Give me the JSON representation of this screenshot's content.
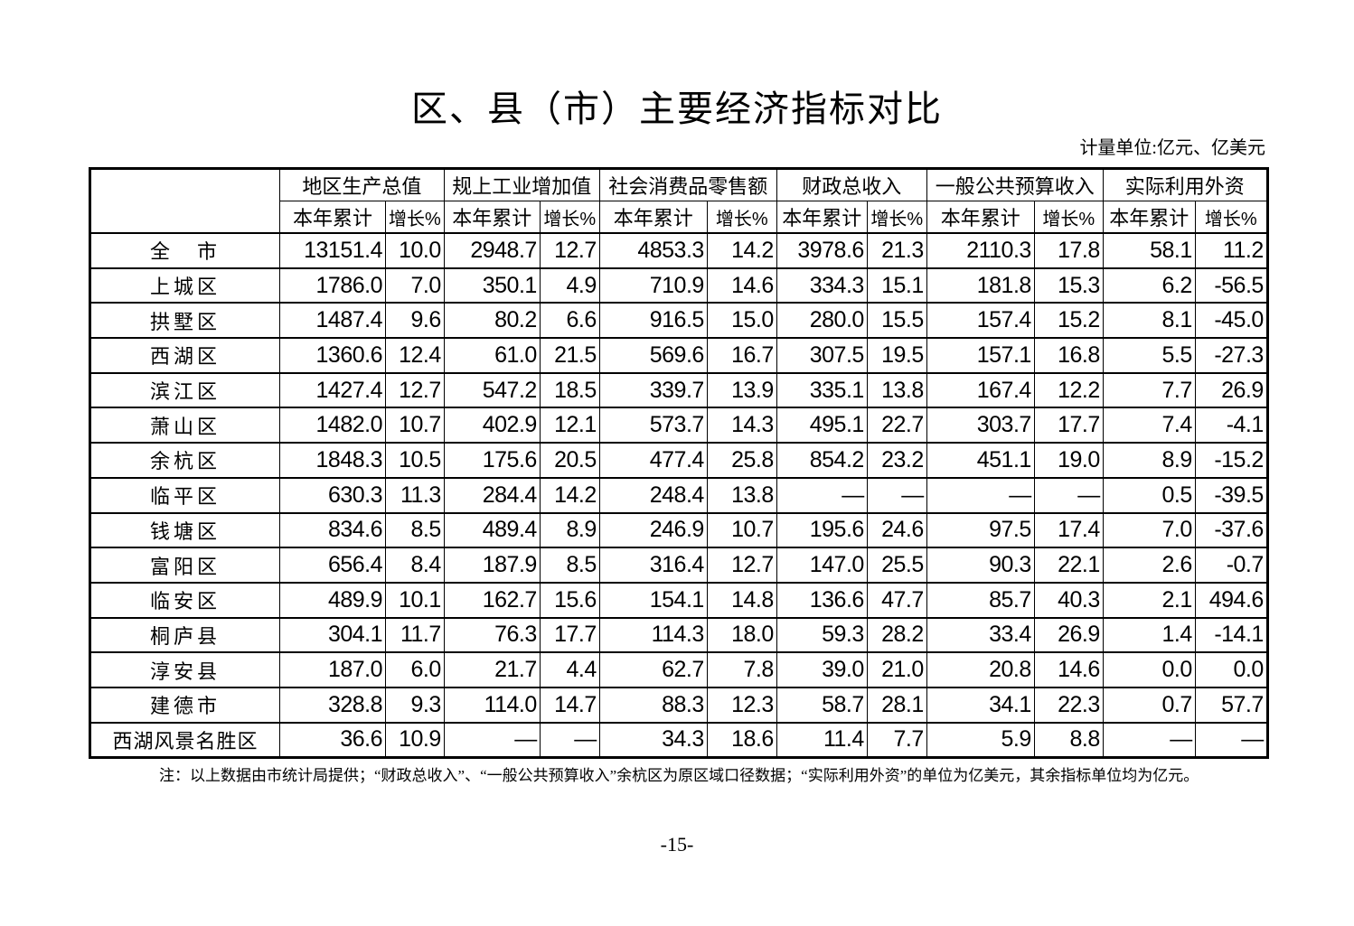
{
  "title": "区、县（市）主要经济指标对比",
  "unit": "计量单位:亿元、亿美元",
  "table": {
    "groups": [
      "地区生产总值",
      "规上工业增加值",
      "社会消费品零售额",
      "财政总收入",
      "一般公共预算收入",
      "实际利用外资"
    ],
    "subheaders": [
      "本年累计",
      "增长%"
    ],
    "rows": [
      {
        "name": "全　市",
        "values": [
          "13151.4",
          "10.0",
          "2948.7",
          "12.7",
          "4853.3",
          "14.2",
          "3978.6",
          "21.3",
          "2110.3",
          "17.8",
          "58.1",
          "11.2"
        ]
      },
      {
        "name": "上城区",
        "values": [
          "1786.0",
          "7.0",
          "350.1",
          "4.9",
          "710.9",
          "14.6",
          "334.3",
          "15.1",
          "181.8",
          "15.3",
          "6.2",
          "-56.5"
        ]
      },
      {
        "name": "拱墅区",
        "values": [
          "1487.4",
          "9.6",
          "80.2",
          "6.6",
          "916.5",
          "15.0",
          "280.0",
          "15.5",
          "157.4",
          "15.2",
          "8.1",
          "-45.0"
        ]
      },
      {
        "name": "西湖区",
        "values": [
          "1360.6",
          "12.4",
          "61.0",
          "21.5",
          "569.6",
          "16.7",
          "307.5",
          "19.5",
          "157.1",
          "16.8",
          "5.5",
          "-27.3"
        ]
      },
      {
        "name": "滨江区",
        "values": [
          "1427.4",
          "12.7",
          "547.2",
          "18.5",
          "339.7",
          "13.9",
          "335.1",
          "13.8",
          "167.4",
          "12.2",
          "7.7",
          "26.9"
        ]
      },
      {
        "name": "萧山区",
        "values": [
          "1482.0",
          "10.7",
          "402.9",
          "12.1",
          "573.7",
          "14.3",
          "495.1",
          "22.7",
          "303.7",
          "17.7",
          "7.4",
          "-4.1"
        ]
      },
      {
        "name": "余杭区",
        "values": [
          "1848.3",
          "10.5",
          "175.6",
          "20.5",
          "477.4",
          "25.8",
          "854.2",
          "23.2",
          "451.1",
          "19.0",
          "8.9",
          "-15.2"
        ]
      },
      {
        "name": "临平区",
        "values": [
          "630.3",
          "11.3",
          "284.4",
          "14.2",
          "248.4",
          "13.8",
          "—",
          "—",
          "—",
          "—",
          "0.5",
          "-39.5"
        ]
      },
      {
        "name": "钱塘区",
        "values": [
          "834.6",
          "8.5",
          "489.4",
          "8.9",
          "246.9",
          "10.7",
          "195.6",
          "24.6",
          "97.5",
          "17.4",
          "7.0",
          "-37.6"
        ]
      },
      {
        "name": "富阳区",
        "values": [
          "656.4",
          "8.4",
          "187.9",
          "8.5",
          "316.4",
          "12.7",
          "147.0",
          "25.5",
          "90.3",
          "22.1",
          "2.6",
          "-0.7"
        ]
      },
      {
        "name": "临安区",
        "values": [
          "489.9",
          "10.1",
          "162.7",
          "15.6",
          "154.1",
          "14.8",
          "136.6",
          "47.7",
          "85.7",
          "40.3",
          "2.1",
          "494.6"
        ]
      },
      {
        "name": "桐庐县",
        "values": [
          "304.1",
          "11.7",
          "76.3",
          "17.7",
          "114.3",
          "18.0",
          "59.3",
          "28.2",
          "33.4",
          "26.9",
          "1.4",
          "-14.1"
        ]
      },
      {
        "name": "淳安县",
        "values": [
          "187.0",
          "6.0",
          "21.7",
          "4.4",
          "62.7",
          "7.8",
          "39.0",
          "21.0",
          "20.8",
          "14.6",
          "0.0",
          "0.0"
        ]
      },
      {
        "name": "建德市",
        "values": [
          "328.8",
          "9.3",
          "114.0",
          "14.7",
          "88.3",
          "12.3",
          "58.7",
          "28.1",
          "34.1",
          "22.3",
          "0.7",
          "57.7"
        ]
      },
      {
        "name": "西湖风景名胜区",
        "values": [
          "36.6",
          "10.9",
          "—",
          "—",
          "34.3",
          "18.6",
          "11.4",
          "7.7",
          "5.9",
          "8.8",
          "—",
          "—"
        ]
      }
    ]
  },
  "note": "注：以上数据由市统计局提供；“财政总收入”、“一般公共预算收入”余杭区为原区域口径数据；“实际利用外资”的单位为亿美元，其余指标单位均为亿元。",
  "page_number": "-15-"
}
